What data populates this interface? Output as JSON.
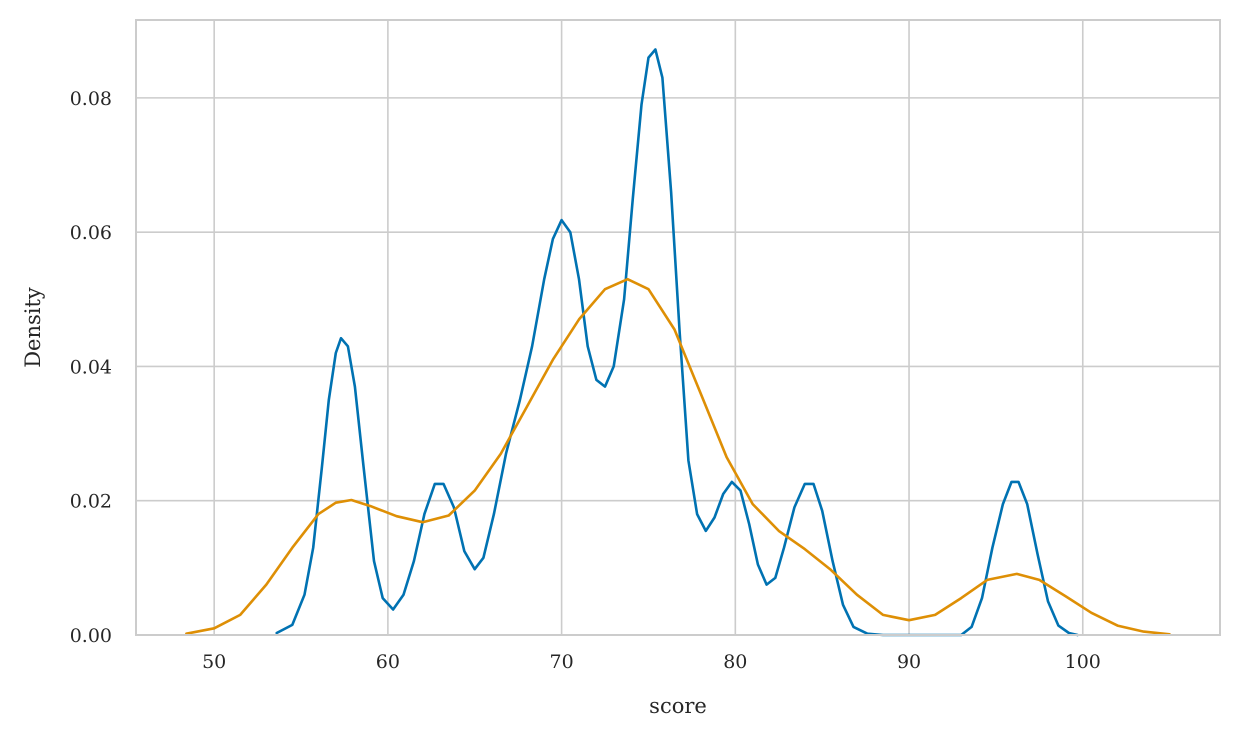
{
  "chart_data": {
    "type": "line",
    "title": "",
    "xlabel": "score",
    "ylabel": "Density",
    "xlim": [
      45.5,
      107.9
    ],
    "ylim": [
      0,
      0.0916
    ],
    "grid": true,
    "x_ticks": [
      50,
      60,
      70,
      80,
      90,
      100
    ],
    "x_tick_labels": [
      "50",
      "60",
      "70",
      "80",
      "90",
      "100"
    ],
    "y_ticks": [
      0.0,
      0.02,
      0.04,
      0.06,
      0.08
    ],
    "y_tick_labels": [
      "0.00",
      "0.02",
      "0.04",
      "0.06",
      "0.08"
    ],
    "series": [
      {
        "color": "#0072b2",
        "points": [
          [
            53.6,
            0.0003
          ],
          [
            54.5,
            0.0015
          ],
          [
            55.2,
            0.006
          ],
          [
            55.7,
            0.013
          ],
          [
            56.2,
            0.025
          ],
          [
            56.6,
            0.035
          ],
          [
            57.0,
            0.042
          ],
          [
            57.3,
            0.0442
          ],
          [
            57.7,
            0.043
          ],
          [
            58.1,
            0.037
          ],
          [
            58.6,
            0.025
          ],
          [
            59.2,
            0.011
          ],
          [
            59.7,
            0.0055
          ],
          [
            60.3,
            0.0038
          ],
          [
            60.9,
            0.006
          ],
          [
            61.5,
            0.011
          ],
          [
            62.1,
            0.018
          ],
          [
            62.7,
            0.0225
          ],
          [
            63.2,
            0.0225
          ],
          [
            63.8,
            0.019
          ],
          [
            64.4,
            0.0125
          ],
          [
            65.0,
            0.0098
          ],
          [
            65.5,
            0.0115
          ],
          [
            66.1,
            0.018
          ],
          [
            66.8,
            0.027
          ],
          [
            67.6,
            0.035
          ],
          [
            68.3,
            0.043
          ],
          [
            69.0,
            0.053
          ],
          [
            69.5,
            0.059
          ],
          [
            70.0,
            0.0618
          ],
          [
            70.5,
            0.06
          ],
          [
            71.0,
            0.053
          ],
          [
            71.5,
            0.043
          ],
          [
            72.0,
            0.038
          ],
          [
            72.5,
            0.037
          ],
          [
            73.0,
            0.04
          ],
          [
            73.6,
            0.05
          ],
          [
            74.1,
            0.065
          ],
          [
            74.6,
            0.079
          ],
          [
            75.0,
            0.086
          ],
          [
            75.4,
            0.0872
          ],
          [
            75.8,
            0.083
          ],
          [
            76.3,
            0.066
          ],
          [
            76.8,
            0.045
          ],
          [
            77.3,
            0.026
          ],
          [
            77.8,
            0.018
          ],
          [
            78.3,
            0.0155
          ],
          [
            78.8,
            0.0175
          ],
          [
            79.3,
            0.021
          ],
          [
            79.8,
            0.0228
          ],
          [
            80.3,
            0.0215
          ],
          [
            80.8,
            0.0165
          ],
          [
            81.3,
            0.0105
          ],
          [
            81.8,
            0.0075
          ],
          [
            82.3,
            0.0085
          ],
          [
            82.8,
            0.013
          ],
          [
            83.4,
            0.019
          ],
          [
            84.0,
            0.0225
          ],
          [
            84.5,
            0.0225
          ],
          [
            85.0,
            0.0185
          ],
          [
            85.6,
            0.011
          ],
          [
            86.2,
            0.0045
          ],
          [
            86.8,
            0.0012
          ],
          [
            87.6,
            0.0002
          ],
          [
            88.5,
            0.0
          ],
          [
            93.0,
            0.0
          ],
          [
            93.6,
            0.0012
          ],
          [
            94.2,
            0.0055
          ],
          [
            94.8,
            0.013
          ],
          [
            95.4,
            0.0195
          ],
          [
            95.9,
            0.0228
          ],
          [
            96.3,
            0.0228
          ],
          [
            96.8,
            0.0195
          ],
          [
            97.4,
            0.012
          ],
          [
            98.0,
            0.005
          ],
          [
            98.6,
            0.0014
          ],
          [
            99.2,
            0.0003
          ],
          [
            99.7,
            0.0
          ]
        ]
      },
      {
        "color": "#de8f05",
        "points": [
          [
            48.4,
            0.0002
          ],
          [
            50.0,
            0.001
          ],
          [
            51.5,
            0.003
          ],
          [
            53.0,
            0.0075
          ],
          [
            54.5,
            0.013
          ],
          [
            56.0,
            0.018
          ],
          [
            57.0,
            0.0197
          ],
          [
            57.9,
            0.0201
          ],
          [
            59.0,
            0.0192
          ],
          [
            60.5,
            0.0177
          ],
          [
            62.0,
            0.0168
          ],
          [
            63.5,
            0.0178
          ],
          [
            65.0,
            0.0215
          ],
          [
            66.5,
            0.027
          ],
          [
            68.0,
            0.034
          ],
          [
            69.5,
            0.041
          ],
          [
            71.0,
            0.047
          ],
          [
            72.5,
            0.0515
          ],
          [
            73.8,
            0.053
          ],
          [
            75.0,
            0.0515
          ],
          [
            76.5,
            0.0455
          ],
          [
            78.0,
            0.036
          ],
          [
            79.5,
            0.0265
          ],
          [
            81.0,
            0.0195
          ],
          [
            82.5,
            0.0155
          ],
          [
            84.0,
            0.0128
          ],
          [
            85.5,
            0.0097
          ],
          [
            87.0,
            0.006
          ],
          [
            88.5,
            0.003
          ],
          [
            90.0,
            0.0022
          ],
          [
            91.5,
            0.003
          ],
          [
            93.0,
            0.0055
          ],
          [
            94.5,
            0.0082
          ],
          [
            96.2,
            0.0091
          ],
          [
            97.5,
            0.0082
          ],
          [
            99.0,
            0.0058
          ],
          [
            100.5,
            0.0033
          ],
          [
            102.0,
            0.0014
          ],
          [
            103.5,
            0.0005
          ],
          [
            105.0,
            0.0001
          ]
        ]
      }
    ]
  }
}
